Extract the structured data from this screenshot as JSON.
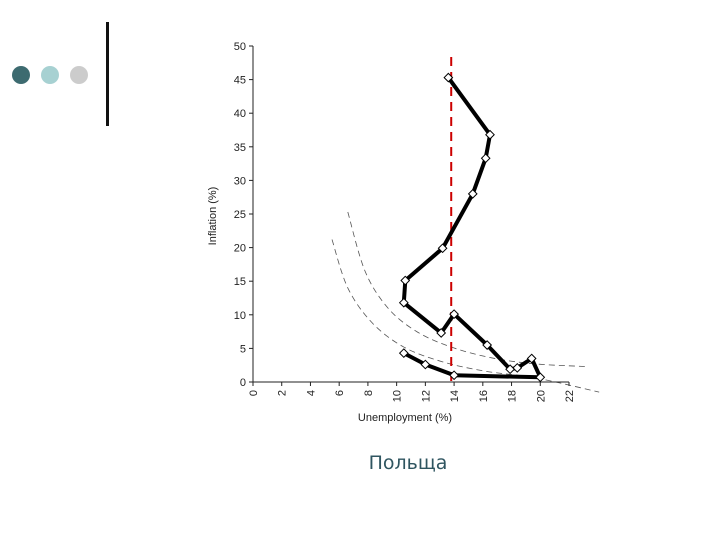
{
  "slide": {
    "caption": "Польща",
    "bullet_colors": [
      "#3d6b70",
      "#a7d1d2",
      "#cccccc"
    ]
  },
  "chart_data": {
    "type": "line",
    "title": "",
    "xlabel": "Unemployment (%)",
    "ylabel": "Inflation (%)",
    "xlim": [
      0,
      22
    ],
    "ylim": [
      0,
      50
    ],
    "xticks": [
      0,
      2,
      4,
      6,
      8,
      10,
      12,
      14,
      16,
      18,
      20,
      22
    ],
    "yticks": [
      0,
      5,
      10,
      15,
      20,
      25,
      30,
      35,
      40,
      45,
      50
    ],
    "series": [
      {
        "values_xy": [
          [
            13.6,
            45.3
          ],
          [
            16.5,
            36.8
          ],
          [
            16.2,
            33.3
          ],
          [
            15.3,
            28.0
          ],
          [
            13.2,
            19.9
          ],
          [
            10.6,
            15.1
          ],
          [
            10.5,
            11.8
          ],
          [
            13.1,
            7.3
          ],
          [
            14.0,
            10.1
          ],
          [
            16.3,
            5.5
          ],
          [
            17.9,
            1.9
          ],
          [
            18.4,
            2.1
          ],
          [
            19.4,
            3.5
          ],
          [
            20.0,
            0.7
          ],
          [
            14.0,
            1.0
          ],
          [
            12.0,
            2.6
          ],
          [
            10.5,
            4.3
          ]
        ],
        "color": "#000000",
        "marker": "diamond"
      }
    ],
    "reference_line": {
      "x": 13.8,
      "color": "#cc0000",
      "style": "dashed"
    },
    "curves": [
      {
        "points": [
          [
            6.6,
            25.3
          ],
          [
            7.8,
            16.5
          ],
          [
            9.4,
            11.0
          ],
          [
            11.4,
            7.5
          ],
          [
            13.8,
            5.2
          ],
          [
            16.6,
            3.6
          ],
          [
            19.6,
            2.7
          ],
          [
            23.2,
            2.3
          ]
        ],
        "color": "#555555",
        "style": "dashed"
      },
      {
        "points": [
          [
            5.5,
            21.2
          ],
          [
            6.6,
            14.0
          ],
          [
            8.3,
            8.8
          ],
          [
            10.5,
            5.2
          ],
          [
            13.2,
            3.0
          ],
          [
            16.2,
            1.6
          ],
          [
            19.7,
            0.6
          ],
          [
            24.1,
            -1.5
          ]
        ],
        "color": "#555555",
        "style": "dashed"
      }
    ],
    "grid": false,
    "legend": "none"
  }
}
